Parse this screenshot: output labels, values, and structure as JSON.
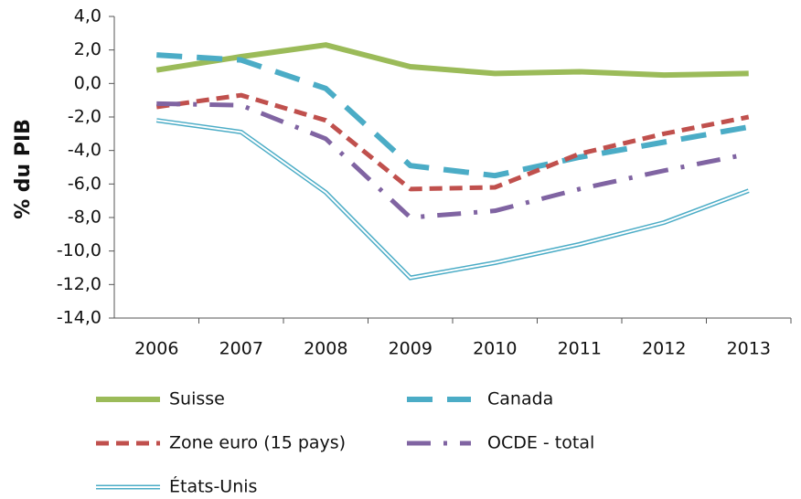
{
  "chart_data": {
    "type": "line",
    "ylabel": "% du PIB",
    "categories": [
      "2006",
      "2007",
      "2008",
      "2009",
      "2010",
      "2011",
      "2012",
      "2013"
    ],
    "series": [
      {
        "name": "Suisse",
        "color": "#9bbb59",
        "style": "solid",
        "values": [
          0.8,
          1.6,
          2.3,
          1.0,
          0.6,
          0.7,
          0.5,
          0.6
        ]
      },
      {
        "name": "Canada",
        "color": "#4bacc6",
        "style": "dash",
        "values": [
          1.7,
          1.4,
          -0.3,
          -4.9,
          -5.5,
          -4.4,
          -3.5,
          -2.6
        ]
      },
      {
        "name": "Zone euro (15 pays)",
        "color": "#c0504d",
        "style": "short-dash",
        "values": [
          -1.4,
          -0.7,
          -2.2,
          -6.3,
          -6.2,
          -4.2,
          -3.0,
          -2.0
        ]
      },
      {
        "name": "OCDE - total",
        "color": "#8064a2",
        "style": "dash-dot",
        "values": [
          -1.2,
          -1.3,
          -3.3,
          -8.0,
          -7.6,
          -6.3,
          -5.2,
          -4.2
        ]
      },
      {
        "name": "États-Unis",
        "color": "#4bacc6",
        "style": "double",
        "values": [
          -2.2,
          -2.9,
          -6.5,
          -11.6,
          -10.7,
          -9.6,
          -8.3,
          -6.4
        ]
      }
    ],
    "ylim": [
      -14,
      4
    ],
    "yticks": [
      {
        "value": 4,
        "label": "4,0"
      },
      {
        "value": 2,
        "label": "2,0"
      },
      {
        "value": 0,
        "label": "0,0"
      },
      {
        "value": -2,
        "label": "-2,0"
      },
      {
        "value": -4,
        "label": "-4,0"
      },
      {
        "value": -6,
        "label": "-6,0"
      },
      {
        "value": -8,
        "label": "-8,0"
      },
      {
        "value": -10,
        "label": "-10,0"
      },
      {
        "value": -12,
        "label": "-12,0"
      },
      {
        "value": -14,
        "label": "-14,0"
      }
    ],
    "grid": false
  }
}
